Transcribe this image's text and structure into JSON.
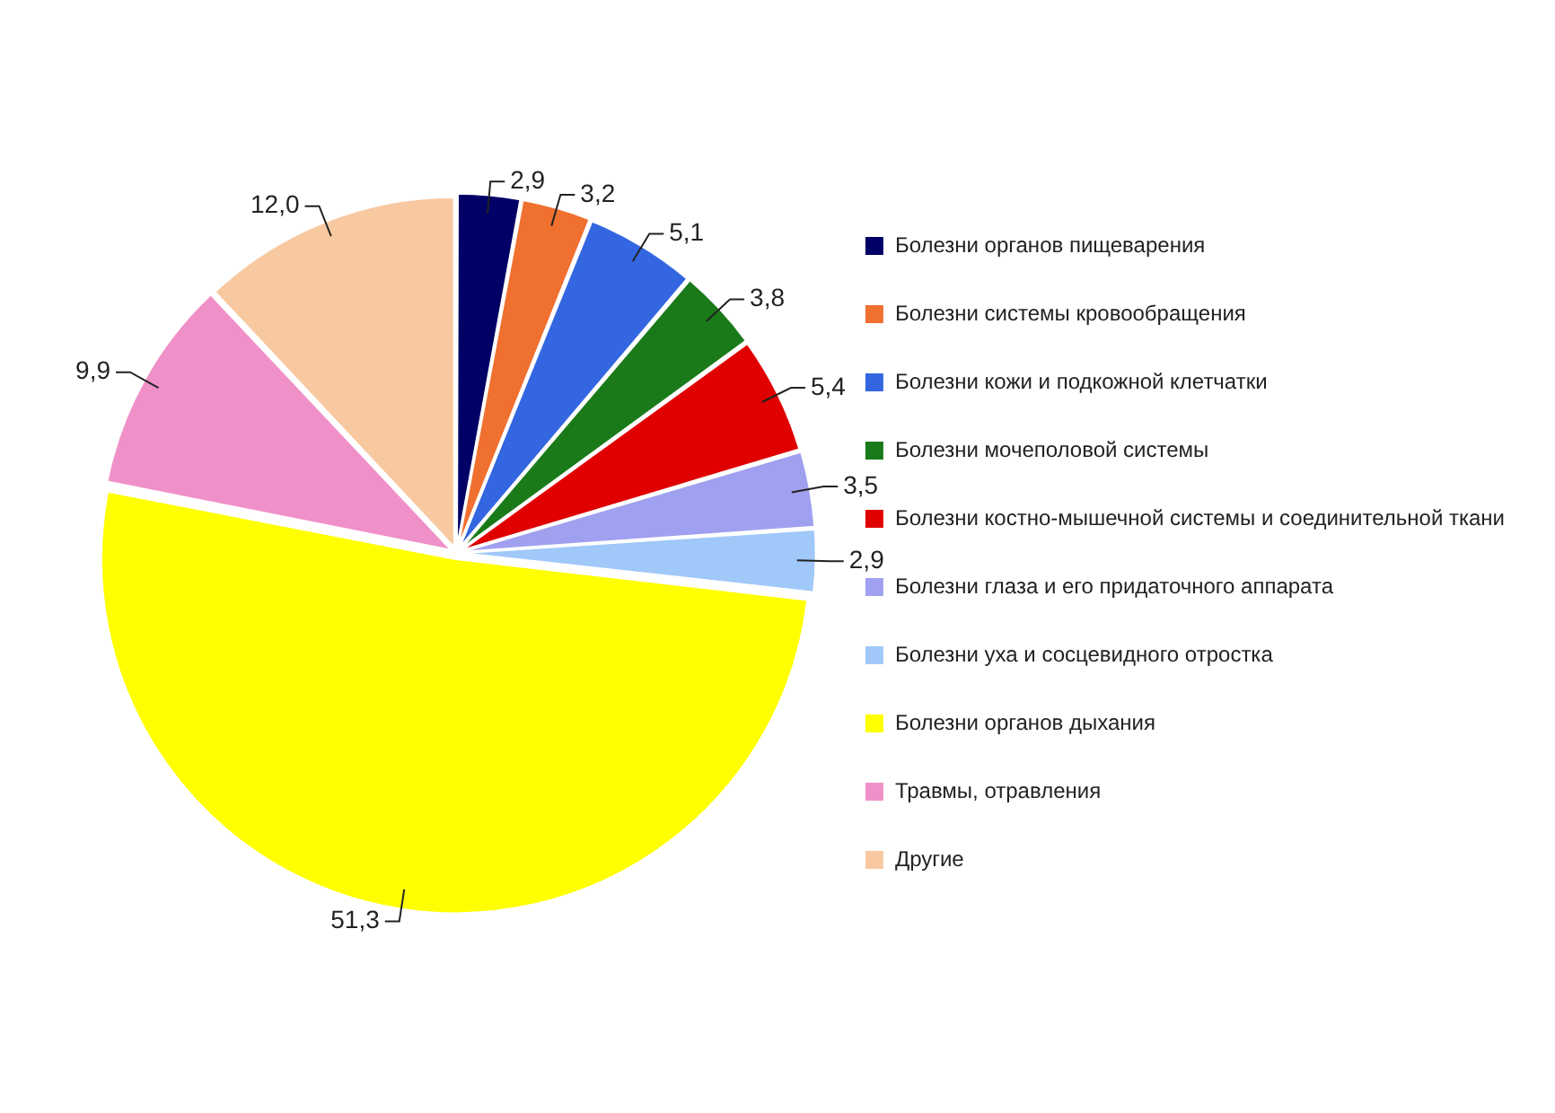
{
  "chart_data": {
    "type": "pie",
    "categories": [
      "Болезни органов пищеварения",
      "Болезни системы кровообращения",
      "Болезни кожи и подкожной клетчатки",
      "Болезни мочеполовой системы",
      "Болезни костно-мышечной системы и соединительной ткани",
      "Болезни глаза и его придаточного аппарата",
      "Болезни уха и сосцевидного отростка",
      "Болезни органов дыхания",
      "Травмы, отравления",
      "Другие"
    ],
    "values": [
      2.9,
      3.2,
      5.1,
      3.8,
      5.4,
      3.5,
      2.9,
      51.3,
      9.9,
      12.0
    ],
    "colors": [
      "#000066",
      "#f07030",
      "#3366e0",
      "#1a7a1a",
      "#e00000",
      "#a0a0f0",
      "#a0c8f8",
      "#ffff00",
      "#f090c8",
      "#f8c8a0"
    ],
    "value_labels": [
      "2,9",
      "3,2",
      "5,1",
      "3,8",
      "5,4",
      "3,5",
      "2,9",
      "51,3",
      "9,9",
      "12,0"
    ],
    "legend": "right"
  }
}
